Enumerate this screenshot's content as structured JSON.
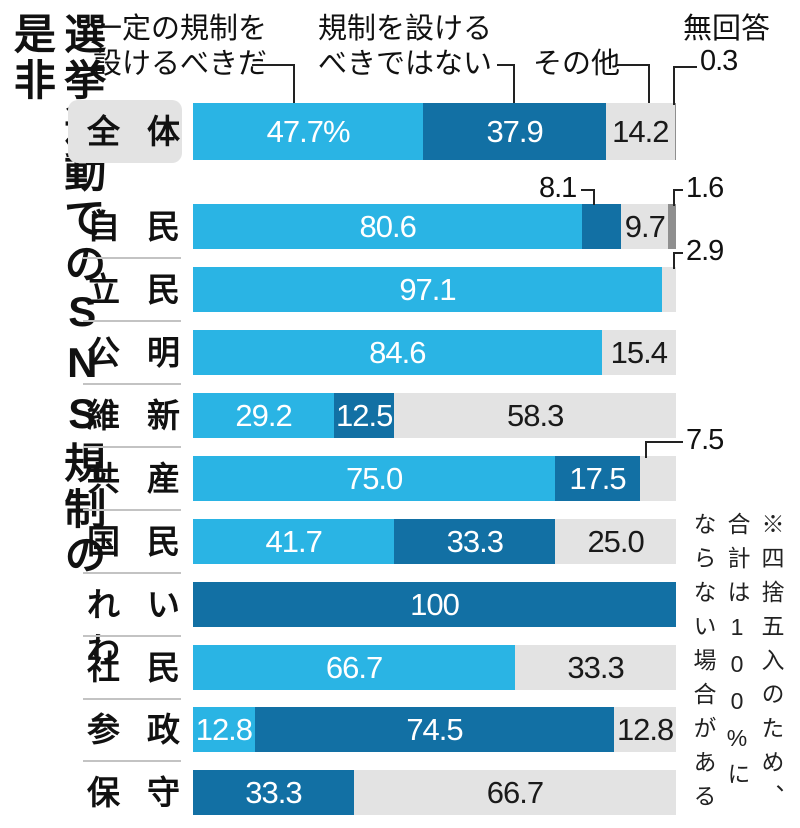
{
  "title": "選挙運動でのSNS規制の是非",
  "note": "※四捨五入のため、合計は100%にならない場合がある",
  "chart_data": {
    "type": "stacked-bar-horizontal",
    "unit": "%",
    "x_max": 100,
    "title": "選挙運動でのSNS規制の是非",
    "note": "※四捨五入のため、合計は100%にならない場合がある",
    "legend": [
      {
        "key": "agree",
        "name": "一定の規制を設けるべきだ",
        "lines": [
          "一定の規制を",
          "設けるべきだ"
        ],
        "color": "#2ab4e4",
        "text_color": "#ffffff"
      },
      {
        "key": "oppose",
        "name": "規制を設けるべきではない",
        "lines": [
          "規制を設ける",
          "べきではない"
        ],
        "color": "#1270a4",
        "text_color": "#ffffff"
      },
      {
        "key": "other",
        "name": "その他",
        "lines": [
          "その他"
        ],
        "color": "#e3e3e3",
        "text_color": "#1a1a1a"
      },
      {
        "key": "noanswer",
        "name": "無回答",
        "lines": [
          "無回答"
        ],
        "color": "#8f8f8f",
        "text_color": "#1a1a1a"
      }
    ],
    "rows": [
      {
        "label": "全体",
        "segments": [
          {
            "type": "agree",
            "value": 47.7,
            "text": "47.7%",
            "text_style": "inside"
          },
          {
            "type": "oppose",
            "value": 37.9,
            "text": "37.9",
            "text_style": "inside"
          },
          {
            "type": "other",
            "value": 14.2,
            "text": "14.2",
            "text_style": "inside"
          },
          {
            "type": "noanswer",
            "value": 0.3,
            "text": "0.3",
            "text_style": "callout-right"
          }
        ]
      },
      {
        "label": "自民",
        "segments": [
          {
            "type": "agree",
            "value": 80.6,
            "text": "80.6",
            "text_style": "inside"
          },
          {
            "type": "oppose",
            "value": 8.1,
            "text": "8.1",
            "text_style": "callout-above"
          },
          {
            "type": "other",
            "value": 9.7,
            "text": "9.7",
            "text_style": "inside"
          },
          {
            "type": "noanswer",
            "value": 1.6,
            "text": "1.6",
            "text_style": "callout-right"
          }
        ]
      },
      {
        "label": "立民",
        "segments": [
          {
            "type": "agree",
            "value": 97.1,
            "text": "97.1",
            "text_style": "inside"
          },
          {
            "type": "other",
            "value": 2.9,
            "text": "2.9",
            "text_style": "callout-right"
          }
        ]
      },
      {
        "label": "公明",
        "segments": [
          {
            "type": "agree",
            "value": 84.6,
            "text": "84.6",
            "text_style": "inside"
          },
          {
            "type": "other",
            "value": 15.4,
            "text": "15.4",
            "text_style": "inside"
          }
        ]
      },
      {
        "label": "維新",
        "segments": [
          {
            "type": "agree",
            "value": 29.2,
            "text": "29.2",
            "text_style": "inside"
          },
          {
            "type": "oppose",
            "value": 12.5,
            "text": "12.5",
            "text_style": "inside"
          },
          {
            "type": "other",
            "value": 58.3,
            "text": "58.3",
            "text_style": "inside"
          }
        ]
      },
      {
        "label": "共産",
        "segments": [
          {
            "type": "agree",
            "value": 75.0,
            "text": "75.0",
            "text_style": "inside"
          },
          {
            "type": "oppose",
            "value": 17.5,
            "text": "17.5",
            "text_style": "inside"
          },
          {
            "type": "other",
            "value": 7.5,
            "text": "7.5",
            "text_style": "callout-right"
          }
        ]
      },
      {
        "label": "国民",
        "segments": [
          {
            "type": "agree",
            "value": 41.7,
            "text": "41.7",
            "text_style": "inside"
          },
          {
            "type": "oppose",
            "value": 33.3,
            "text": "33.3",
            "text_style": "inside"
          },
          {
            "type": "other",
            "value": 25.0,
            "text": "25.0",
            "text_style": "inside"
          }
        ]
      },
      {
        "label": "れいわ",
        "segments": [
          {
            "type": "oppose",
            "value": 100,
            "text": "100",
            "text_style": "inside"
          }
        ]
      },
      {
        "label": "社民",
        "segments": [
          {
            "type": "agree",
            "value": 66.7,
            "text": "66.7",
            "text_style": "inside"
          },
          {
            "type": "other",
            "value": 33.3,
            "text": "33.3",
            "text_style": "inside"
          }
        ]
      },
      {
        "label": "参政",
        "segments": [
          {
            "type": "agree",
            "value": 12.8,
            "text": "12.8",
            "text_style": "inside"
          },
          {
            "type": "oppose",
            "value": 74.5,
            "text": "74.5",
            "text_style": "inside"
          },
          {
            "type": "other",
            "value": 12.8,
            "text": "12.8",
            "text_style": "inside"
          }
        ]
      },
      {
        "label": "保守",
        "segments": [
          {
            "type": "oppose",
            "value": 33.3,
            "text": "33.3",
            "text_style": "inside"
          },
          {
            "type": "other",
            "value": 66.7,
            "text": "66.7",
            "text_style": "inside"
          }
        ]
      }
    ]
  }
}
